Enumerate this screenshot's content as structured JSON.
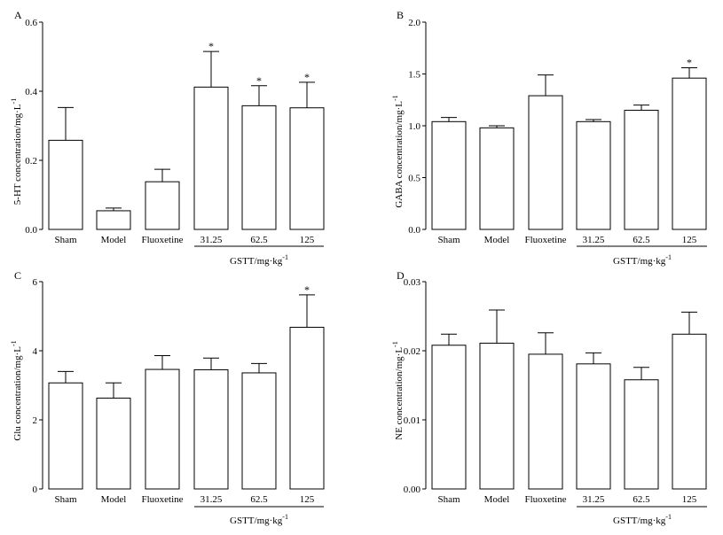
{
  "figure": {
    "background": "#ffffff",
    "bar_fill": "#ffffff",
    "stroke": "#000000"
  },
  "chart_data": [
    {
      "type": "bar",
      "panel_label": "A",
      "categories": [
        "Sham",
        "Model",
        "Fluoxetine",
        "31.25",
        "62.5",
        "125"
      ],
      "values": [
        0.258,
        0.054,
        0.138,
        0.412,
        0.358,
        0.352
      ],
      "errors": [
        0.095,
        0.008,
        0.036,
        0.103,
        0.058,
        0.074
      ],
      "significance": [
        "",
        "",
        "",
        "*",
        "*",
        "*"
      ],
      "ylabel": "5-HT concentration/mg·L",
      "ylabel_sup": "-1",
      "ylim": [
        0,
        0.6
      ],
      "yticks": [
        "0.0",
        "0.2",
        "0.4",
        "0.6"
      ],
      "group_label": "GSTT/mg·kg",
      "group_label_sup": "-1"
    },
    {
      "type": "bar",
      "panel_label": "B",
      "categories": [
        "Sham",
        "Model",
        "Fluoxetine",
        "31.25",
        "62.5",
        "125"
      ],
      "values": [
        1.04,
        0.98,
        1.29,
        1.04,
        1.15,
        1.46
      ],
      "errors": [
        0.04,
        0.02,
        0.2,
        0.02,
        0.05,
        0.1
      ],
      "significance": [
        "",
        "",
        "",
        "",
        "",
        "*"
      ],
      "ylabel": "GABA concentration/mg·L",
      "ylabel_sup": "-1",
      "ylim": [
        0,
        2.0
      ],
      "yticks": [
        "0.0",
        "0.5",
        "1.0",
        "1.5",
        "2.0"
      ],
      "group_label": "GSTT/mg·kg",
      "group_label_sup": "-1"
    },
    {
      "type": "bar",
      "panel_label": "C",
      "categories": [
        "Sham",
        "Model",
        "Fluoxetine",
        "31.25",
        "62.5",
        "125"
      ],
      "values": [
        3.07,
        2.63,
        3.46,
        3.45,
        3.36,
        4.68
      ],
      "errors": [
        0.33,
        0.44,
        0.4,
        0.34,
        0.27,
        0.94
      ],
      "significance": [
        "",
        "",
        "",
        "",
        "",
        "*"
      ],
      "ylabel": "Glu concentration/mg·L",
      "ylabel_sup": "-1",
      "ylim": [
        0,
        6
      ],
      "yticks": [
        "0",
        "2",
        "4",
        "6"
      ],
      "group_label": "GSTT/mg·kg",
      "group_label_sup": "-1"
    },
    {
      "type": "bar",
      "panel_label": "D",
      "categories": [
        "Sham",
        "Model",
        "Fluoxetine",
        "31.25",
        "62.5",
        "125"
      ],
      "values": [
        0.0208,
        0.0211,
        0.0195,
        0.0181,
        0.0158,
        0.0224
      ],
      "errors": [
        0.0016,
        0.0048,
        0.0031,
        0.0016,
        0.0018,
        0.0032
      ],
      "significance": [
        "",
        "",
        "",
        "",
        "",
        ""
      ],
      "ylabel": "NE concentration/mg·L",
      "ylabel_sup": "-1",
      "ylim": [
        0,
        0.03
      ],
      "yticks": [
        "0.00",
        "0.01",
        "0.02",
        "0.03"
      ],
      "group_label": "GSTT/mg·kg",
      "group_label_sup": "-1"
    }
  ]
}
